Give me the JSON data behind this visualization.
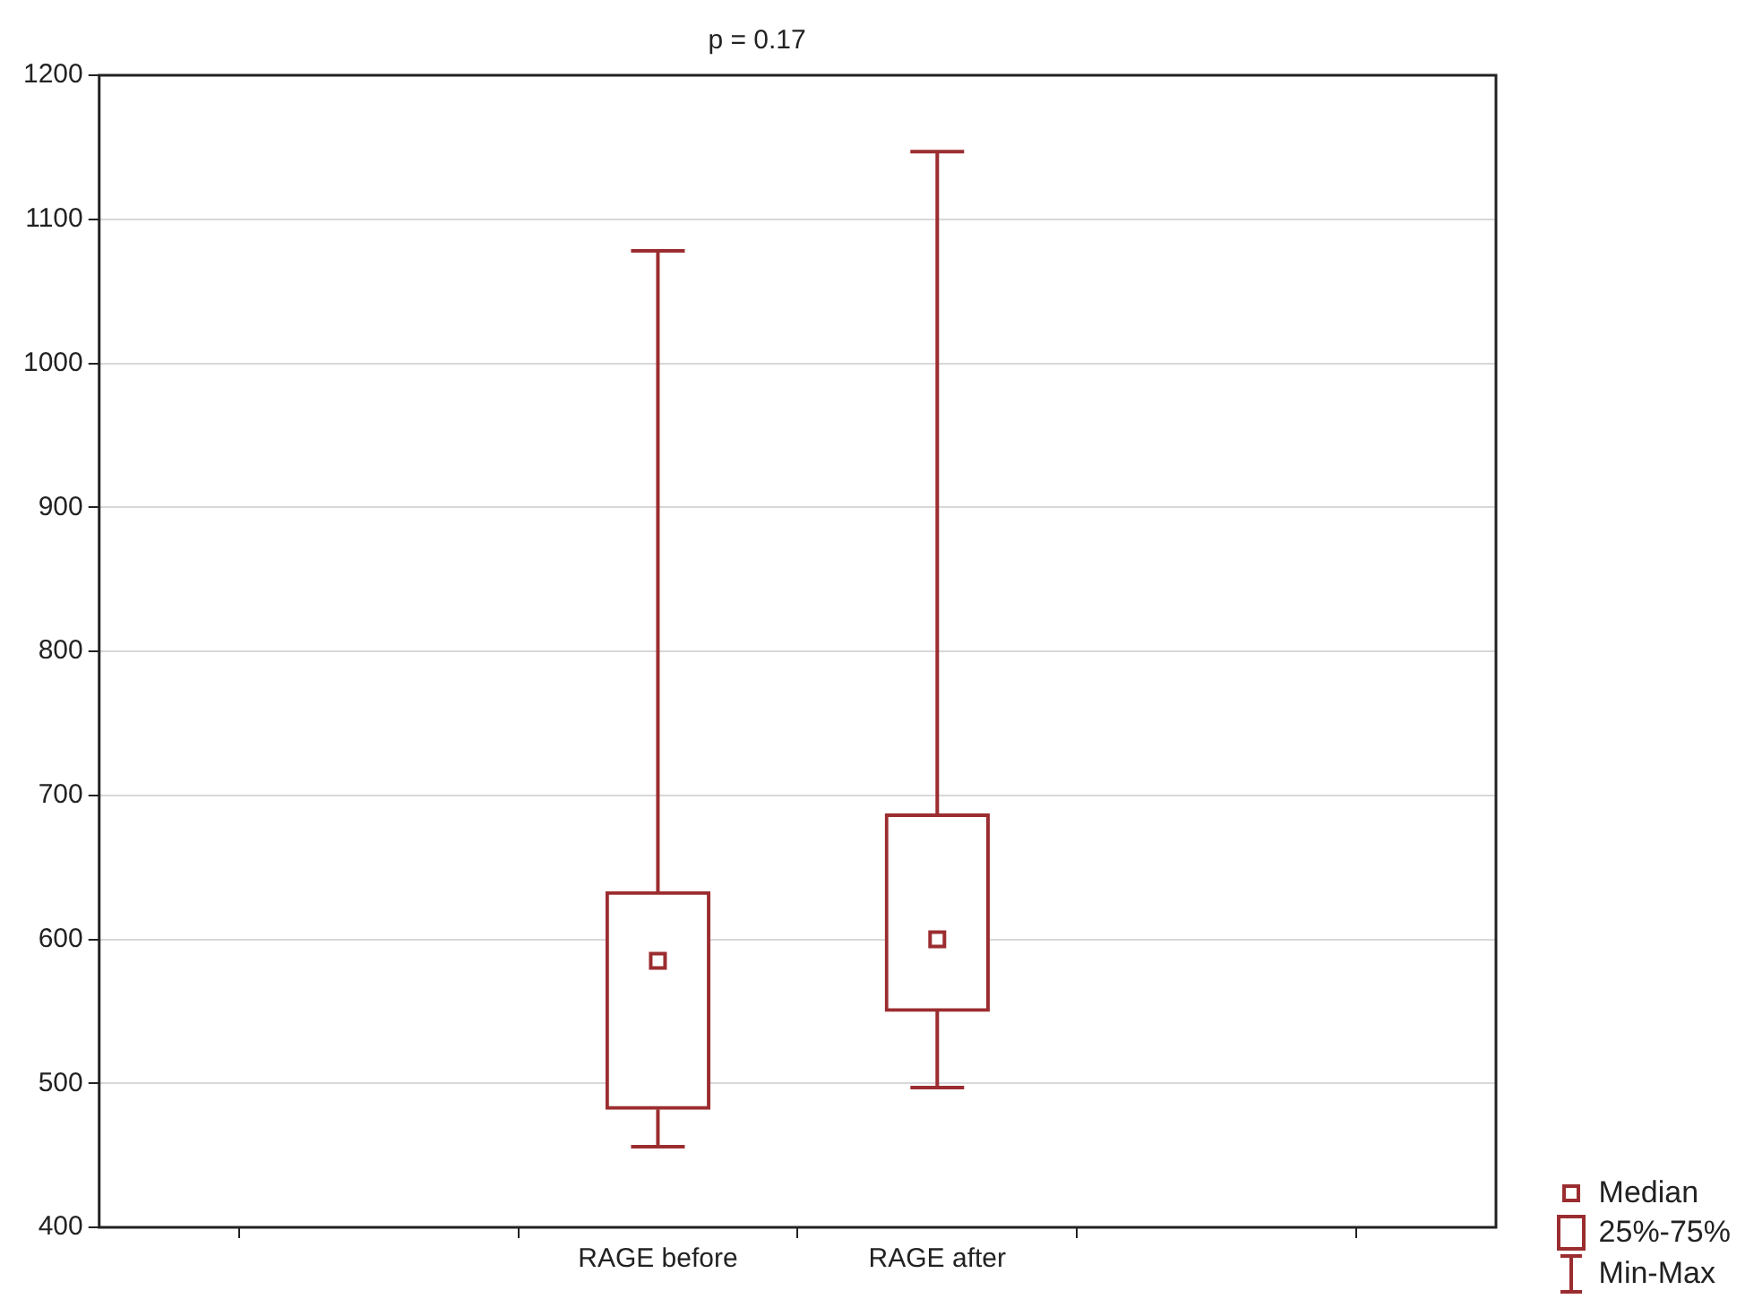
{
  "chart_data": {
    "type": "box",
    "title": "p = 0.17",
    "categories": [
      "RAGE before",
      "RAGE after"
    ],
    "series": [
      {
        "color": "#9b2d30",
        "boxes": [
          {
            "low": 456,
            "q1": 482,
            "median": 585,
            "q3": 633,
            "high": 1078
          },
          {
            "low": 497,
            "q1": 550,
            "median": 600,
            "q3": 687,
            "high": 1147
          }
        ]
      }
    ],
    "ylim": [
      400,
      1200
    ],
    "yticks": [
      400,
      500,
      600,
      700,
      800,
      900,
      1000,
      1100,
      1200
    ],
    "grid": "y",
    "annotations": [
      "Median",
      "25%-75%",
      "Min-Max"
    ]
  }
}
